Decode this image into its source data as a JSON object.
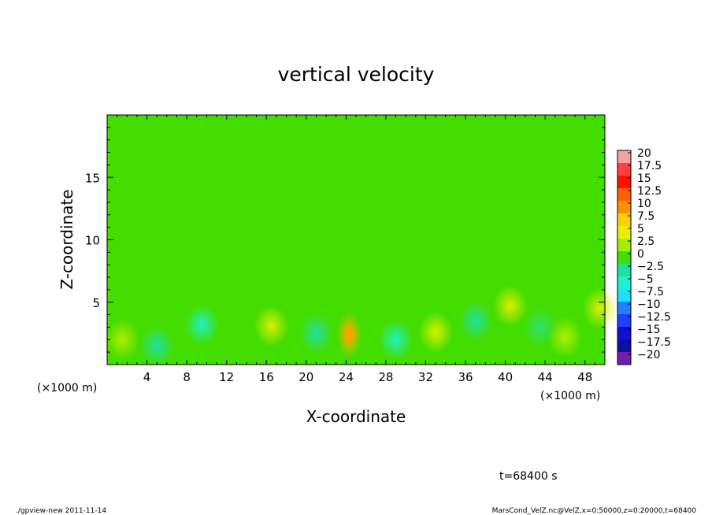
{
  "chart_data": {
    "type": "heatmap",
    "title": "vertical velocity",
    "xlabel": "X-coordinate",
    "ylabel": "Z-coordinate",
    "x_unit_left": "(×1000 m)",
    "x_unit_right": "(×1000 m)",
    "xlim": [
      0,
      50
    ],
    "ylim": [
      0,
      20
    ],
    "xticks": [
      4,
      8,
      12,
      16,
      20,
      24,
      28,
      32,
      36,
      40,
      44,
      48
    ],
    "yticks": [
      5,
      10,
      15
    ],
    "colorbar": {
      "levels": [
        "20",
        "17.5",
        "15",
        "12.5",
        "10",
        "7.5",
        "5",
        "2.5",
        "0",
        "−2.5",
        "−5",
        "−7.5",
        "−10",
        "−12.5",
        "−15",
        "−17.5",
        "−20"
      ],
      "colors": [
        "#f7a0a0",
        "#ff4040",
        "#ff1000",
        "#ff6000",
        "#ff9000",
        "#ffd000",
        "#e8f000",
        "#a0f000",
        "#40e000",
        "#20e0a0",
        "#20f0d0",
        "#20e0ff",
        "#2080ff",
        "#2040ff",
        "#1010d0",
        "#1010a0",
        "#7020b0"
      ]
    },
    "features": [
      {
        "x": 24.3,
        "z": 2.4,
        "w": 7.5,
        "label": "updraft"
      },
      {
        "x": 16.5,
        "z": 3.1,
        "w": 4.0,
        "label": "updraft"
      },
      {
        "x": 33.0,
        "z": 2.6,
        "w": 3.5,
        "label": "updraft"
      },
      {
        "x": 46.0,
        "z": 2.2,
        "w": 3.0,
        "label": "updraft"
      },
      {
        "x": 40.5,
        "z": 4.7,
        "w": 3.5,
        "label": "updraft"
      },
      {
        "x": 1.5,
        "z": 2.0,
        "w": 3.0,
        "label": "updraft"
      },
      {
        "x": 49.5,
        "z": 4.5,
        "w": 5.0,
        "label": "updraft"
      },
      {
        "x": 9.5,
        "z": 3.2,
        "w": -5.0,
        "label": "downdraft"
      },
      {
        "x": 29.0,
        "z": 2.0,
        "w": -5.0,
        "label": "downdraft"
      },
      {
        "x": 37.0,
        "z": 3.5,
        "w": -3.0,
        "label": "downdraft"
      },
      {
        "x": 21.0,
        "z": 2.5,
        "w": -3.5,
        "label": "downdraft"
      },
      {
        "x": 5.0,
        "z": 1.5,
        "w": -3.0,
        "label": "downdraft"
      },
      {
        "x": 43.5,
        "z": 3.0,
        "w": -2.5,
        "label": "downdraft"
      }
    ]
  },
  "annotations": {
    "time": "t=68400 s",
    "footer_left": "./gpview-new  2011-11-14",
    "footer_right": "MarsCond_VelZ.nc@VelZ,x=0:50000,z=0:20000,t=68400"
  }
}
